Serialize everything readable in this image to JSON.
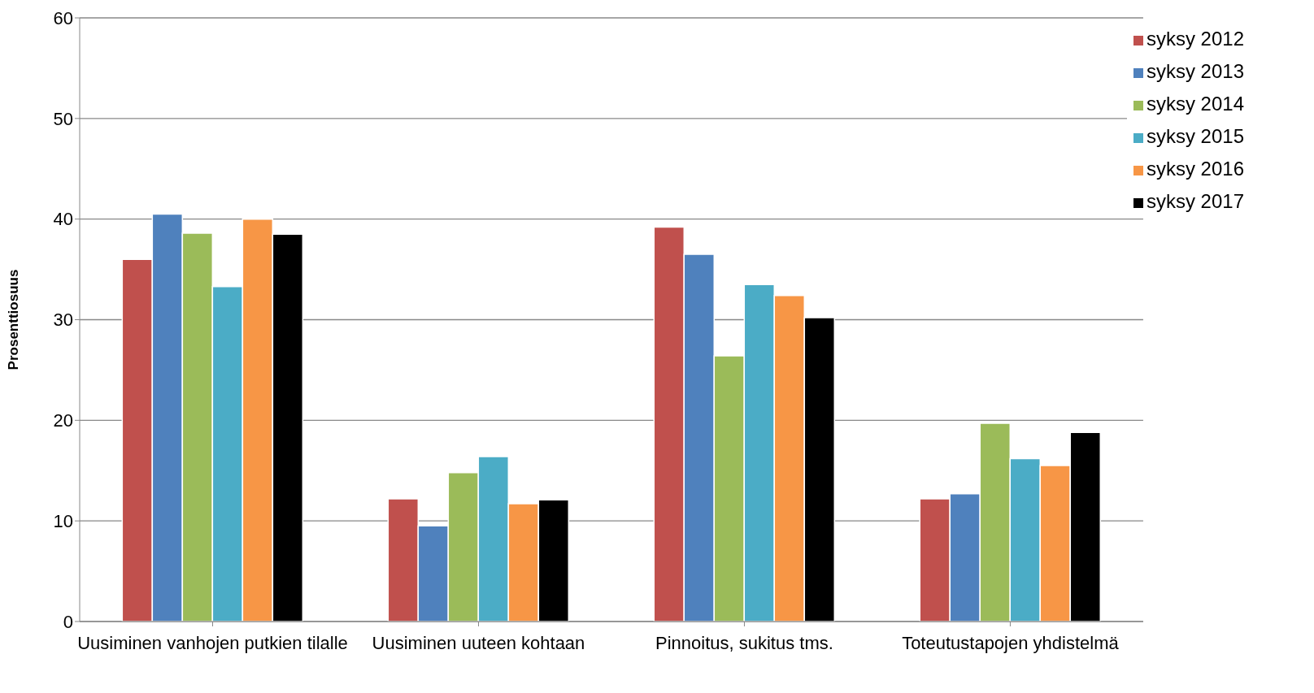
{
  "chart_data": {
    "type": "bar",
    "ylabel": "Prosenttiosuus",
    "categories": [
      "Uusiminen vanhojen putkien tilalle",
      "Uusiminen uuteen kohtaan",
      "Pinnoitus, sukitus tms.",
      "Toteutustapojen yhdistelmä"
    ],
    "series": [
      {
        "name": "syksy 2012",
        "color": "#c0504d",
        "values": [
          36.0,
          12.2,
          39.2,
          12.2
        ]
      },
      {
        "name": "syksy 2013",
        "color": "#4f81bd",
        "values": [
          40.5,
          9.5,
          36.5,
          12.7
        ]
      },
      {
        "name": "syksy 2014",
        "color": "#9bbb59",
        "values": [
          38.6,
          14.8,
          26.4,
          19.7
        ]
      },
      {
        "name": "syksy 2015",
        "color": "#4bacc6",
        "values": [
          33.3,
          16.4,
          33.5,
          16.2
        ]
      },
      {
        "name": "syksy 2016",
        "color": "#f79646",
        "values": [
          40.0,
          11.7,
          32.4,
          15.5
        ]
      },
      {
        "name": "syksy 2017",
        "color": "#000000",
        "values": [
          38.5,
          12.1,
          30.2,
          18.8
        ]
      }
    ],
    "ylim": [
      0,
      60
    ],
    "yticks": [
      0,
      10,
      20,
      30,
      40,
      50,
      60
    ],
    "grid": "y",
    "legend": "top right"
  }
}
